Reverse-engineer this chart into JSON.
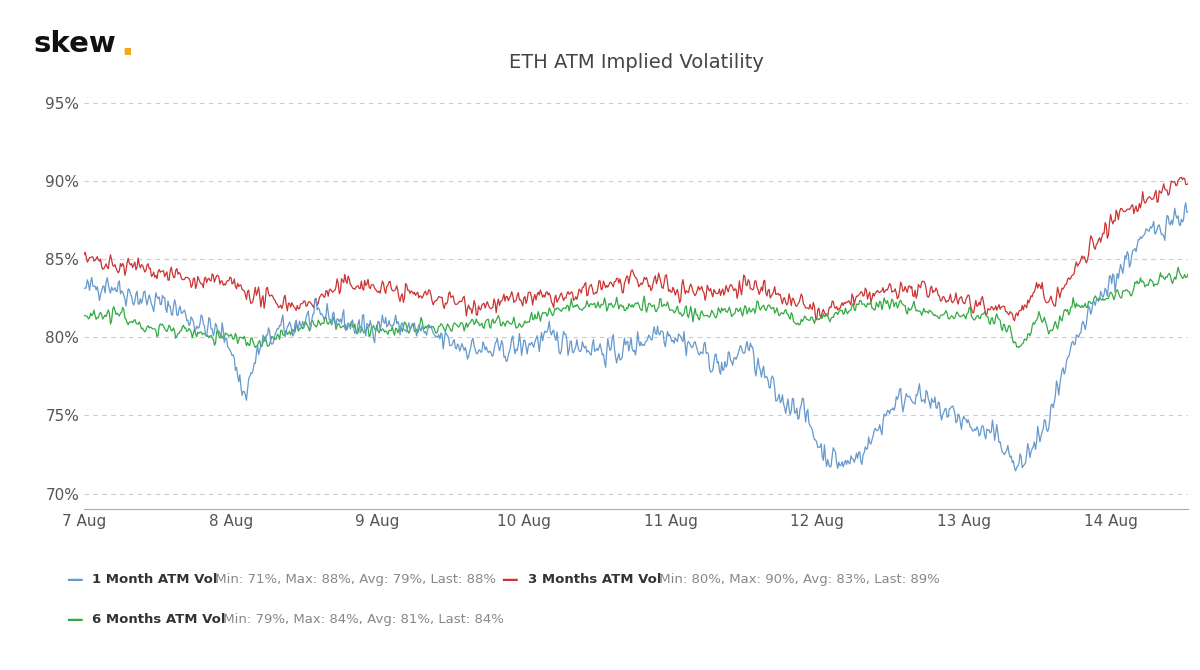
{
  "title": "ETH ATM Implied Volatility",
  "skew_color": "#000000",
  "skew_dot_color": "#f5a623",
  "background_color": "#ffffff",
  "grid_color": "#cccccc",
  "title_color": "#444444",
  "ylim": [
    69,
    96
  ],
  "yticks": [
    70,
    75,
    80,
    85,
    90,
    95
  ],
  "xlabel_dates": [
    "7 Aug",
    "8 Aug",
    "9 Aug",
    "10 Aug",
    "11 Aug",
    "12 Aug",
    "13 Aug",
    "14 Aug"
  ],
  "line_colors": {
    "1m": "#6699cc",
    "3m": "#cc3333",
    "6m": "#33aa44"
  },
  "legend": {
    "line1_bold": "1 Month ATM Vol",
    "line1_stats": " Min: 71%, Max: 88%, Avg: 79%, Last: 88%",
    "line2_bold": "3 Months ATM Vol",
    "line2_stats": " Min: 80%, Max: 90%, Avg: 83%, Last: 89%",
    "line3_bold": "6 Months ATM Vol",
    "line3_stats": " Min: 79%, Max: 84%, Avg: 81%, Last: 84%"
  },
  "n_points": 1000
}
